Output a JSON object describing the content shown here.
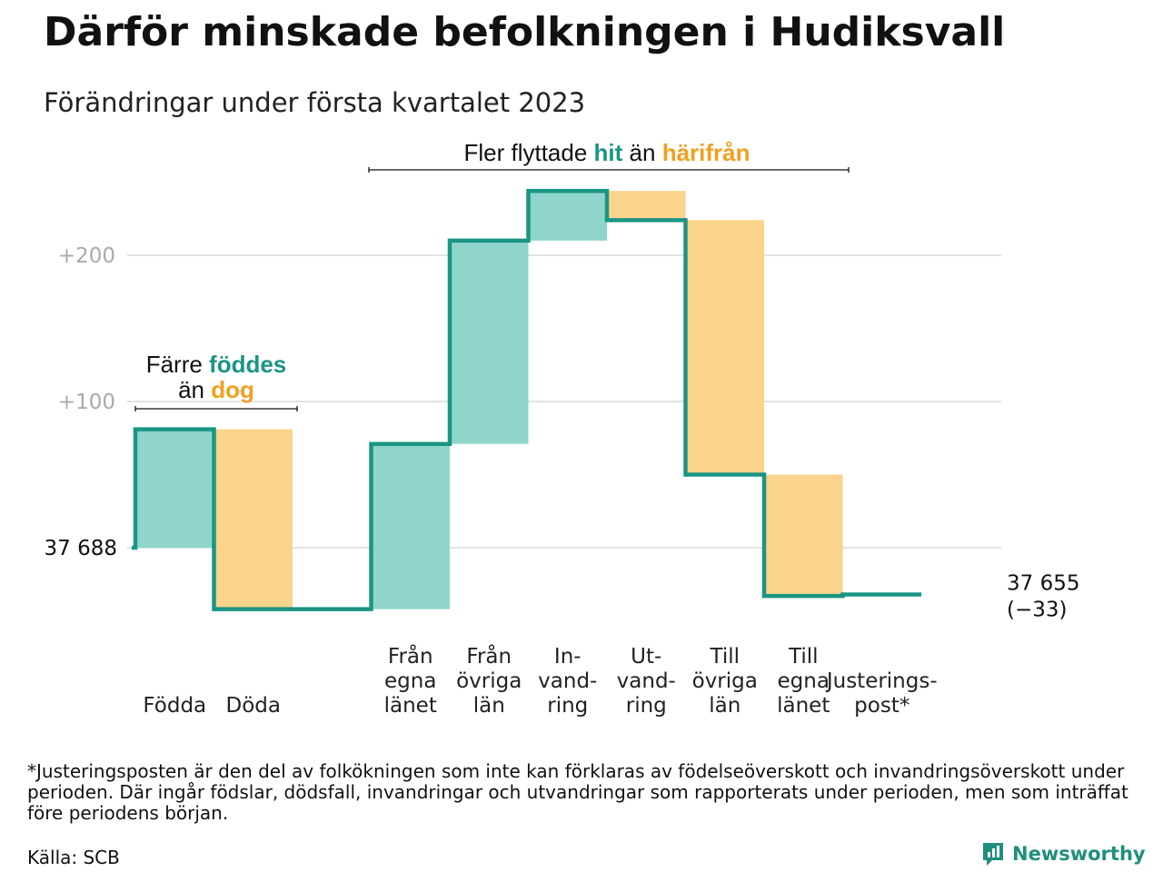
{
  "title": "Därför minskade befolkningen i Hudiksvall",
  "subtitle": "Förändringar under första kvartalet 2023",
  "colors": {
    "increase": "#8fd5cc",
    "decrease": "#fad48b",
    "step_line": "#1a9584",
    "grid": "#e3e3e3",
    "tick": "#aaaaaa",
    "accent_teal": "#1a9584",
    "accent_orange": "#f0a020"
  },
  "chart_data": {
    "type": "waterfall",
    "start_label": "37 688",
    "end_label": "37 655",
    "end_change_label": "(−33)",
    "y_ticks": [
      {
        "value": 0,
        "label": ""
      },
      {
        "value": 100,
        "label": "+100"
      },
      {
        "value": 200,
        "label": "+200"
      }
    ],
    "ylim": [
      -60,
      260
    ],
    "steps": [
      {
        "category": "Födda",
        "lines": [
          "Födda"
        ],
        "value": 81,
        "kind": "increase"
      },
      {
        "category": "Döda",
        "lines": [
          "Döda"
        ],
        "value": -123,
        "kind": "decrease"
      },
      {
        "category": "",
        "lines": [],
        "value": 0,
        "kind": "gap"
      },
      {
        "category": "Från egna länet",
        "lines": [
          "Från",
          "egna",
          "länet"
        ],
        "value": 113,
        "kind": "increase"
      },
      {
        "category": "Från övriga län",
        "lines": [
          "Från",
          "övriga",
          "län"
        ],
        "value": 139,
        "kind": "increase"
      },
      {
        "category": "In-vandring",
        "lines": [
          "In-",
          "vand-",
          "ring"
        ],
        "value": 34,
        "kind": "increase"
      },
      {
        "category": "Ut-vandring",
        "lines": [
          "Ut-",
          "vand-",
          "ring"
        ],
        "value": -20,
        "kind": "decrease"
      },
      {
        "category": "Till övriga län",
        "lines": [
          "Till",
          "övriga",
          "län"
        ],
        "value": -174,
        "kind": "decrease"
      },
      {
        "category": "Till egna länet",
        "lines": [
          "Till",
          "egna",
          "länet"
        ],
        "value": -83,
        "kind": "decrease"
      },
      {
        "category": "Justerings-post*",
        "lines": [
          "Justerings-",
          "post*"
        ],
        "value": 1,
        "kind": "adjustment"
      }
    ],
    "annotations": {
      "births": {
        "line1_pre": "Färre ",
        "line1_accent": "föddes",
        "line2_pre": "än ",
        "line2_accent": "dog"
      },
      "migration": {
        "pre": "Fler flyttade ",
        "accent1": "hit",
        "mid": " än ",
        "accent2": "härifrån"
      }
    }
  },
  "footnote": "*Justeringsposten är den del av folkökningen som inte kan förklaras av födelseöverskott och invandringsöverskott under perioden. Där ingår födslar, dödsfall, invandringar och utvandringar som rapporterats under perioden, men som inträffat före periodens början.",
  "source": "Källa: SCB",
  "brand": {
    "name": "Newsworthy",
    "icon": "newsworthy-logo-icon"
  }
}
